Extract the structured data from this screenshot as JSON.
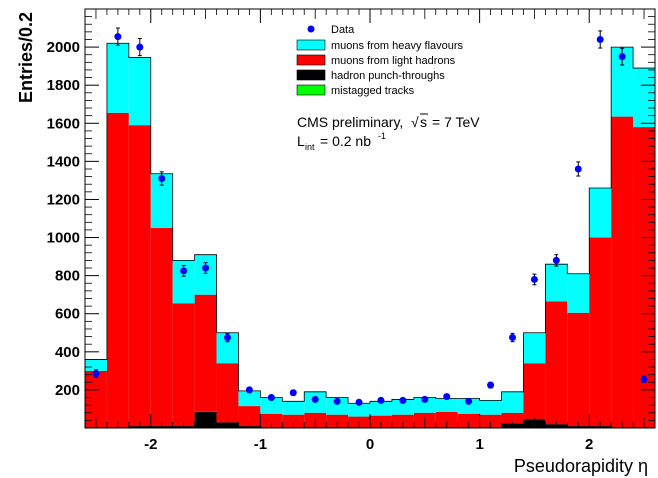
{
  "chart_data": {
    "type": "bar",
    "stacked": true,
    "xlabel": "Pseudorapidity η",
    "ylabel": "Entries/0.2",
    "xlim": [
      -2.6,
      2.6
    ],
    "ylim": [
      0,
      2200
    ],
    "x_ticks": [
      -2,
      -1,
      0,
      1,
      2
    ],
    "x_tick_labels": [
      "-2",
      "-1",
      "0",
      "1",
      "2"
    ],
    "y_ticks": [
      200,
      400,
      600,
      800,
      1000,
      1200,
      1400,
      1600,
      1800,
      2000
    ],
    "y_tick_labels": [
      "200",
      "400",
      "600",
      "800",
      "1000",
      "1200",
      "1400",
      "1600",
      "1800",
      "2000"
    ],
    "bin_edges": [
      -2.6,
      -2.4,
      -2.2,
      -2.0,
      -1.8,
      -1.6,
      -1.4,
      -1.2,
      -1.0,
      -0.8,
      -0.6,
      -0.4,
      -0.2,
      0.0,
      0.2,
      0.4,
      0.6,
      0.8,
      1.0,
      1.2,
      1.4,
      1.6,
      1.8,
      2.0,
      2.2,
      2.4,
      2.6
    ],
    "series": [
      {
        "name": "mistagged tracks",
        "color": "#00ff00",
        "values": [
          0,
          0,
          0,
          0,
          0,
          0,
          0,
          0,
          0,
          0,
          0,
          0,
          0,
          0,
          0,
          0,
          0,
          0,
          0,
          0,
          0,
          0,
          0,
          0,
          0,
          0
        ]
      },
      {
        "name": "hadron punch-throughs",
        "color": "#000000",
        "values": [
          5,
          5,
          10,
          10,
          10,
          85,
          30,
          10,
          5,
          5,
          5,
          5,
          5,
          5,
          5,
          5,
          5,
          5,
          5,
          25,
          45,
          20,
          10,
          10,
          5,
          5
        ]
      },
      {
        "name": "muons from light hadrons",
        "color": "#ff0000",
        "values": [
          295,
          1650,
          1580,
          1040,
          645,
          615,
          310,
          105,
          70,
          65,
          75,
          65,
          55,
          60,
          65,
          75,
          80,
          70,
          65,
          55,
          295,
          645,
          595,
          990,
          1630,
          1575
        ]
      },
      {
        "name": "muons from heavy flavours",
        "color": "#00ffff",
        "values": [
          60,
          365,
          355,
          285,
          225,
          210,
          160,
          80,
          85,
          70,
          110,
          90,
          70,
          75,
          80,
          80,
          70,
          80,
          75,
          110,
          160,
          195,
          205,
          260,
          365,
          310
        ]
      }
    ],
    "series_drawn_as_step_outline": [
      300,
      60
    ],
    "data_points": {
      "name": "Data",
      "color": "#0000ff",
      "x": [
        -2.5,
        -2.3,
        -2.1,
        -1.9,
        -1.7,
        -1.5,
        -1.3,
        -1.1,
        -0.9,
        -0.7,
        -0.5,
        -0.3,
        -0.1,
        0.1,
        0.3,
        0.5,
        0.7,
        0.9,
        1.1,
        1.3,
        1.5,
        1.7,
        1.9,
        2.1,
        2.3,
        2.5
      ],
      "y": [
        285,
        2055,
        2000,
        1310,
        825,
        840,
        475,
        200,
        160,
        185,
        150,
        140,
        135,
        145,
        145,
        150,
        165,
        140,
        225,
        475,
        780,
        880,
        1360,
        2040,
        1950,
        255
      ],
      "err": [
        20,
        45,
        45,
        35,
        28,
        28,
        22,
        14,
        13,
        14,
        12,
        12,
        12,
        12,
        12,
        12,
        13,
        12,
        15,
        22,
        28,
        30,
        37,
        45,
        44,
        16
      ]
    },
    "legend": {
      "placement": "top-center",
      "entries": [
        "Data",
        "muons from heavy flavours",
        "muons from light hadrons",
        "hadron punch-throughs",
        "mistagged tracks"
      ]
    },
    "annotations": {
      "line1": "CMS preliminary,",
      "sqrt_s": "s",
      "energy": "= 7 TeV",
      "lumi_prefix": "L",
      "lumi_sub": "int",
      "lumi_value": "= 0.2 nb",
      "lumi_exp": "-1"
    }
  }
}
